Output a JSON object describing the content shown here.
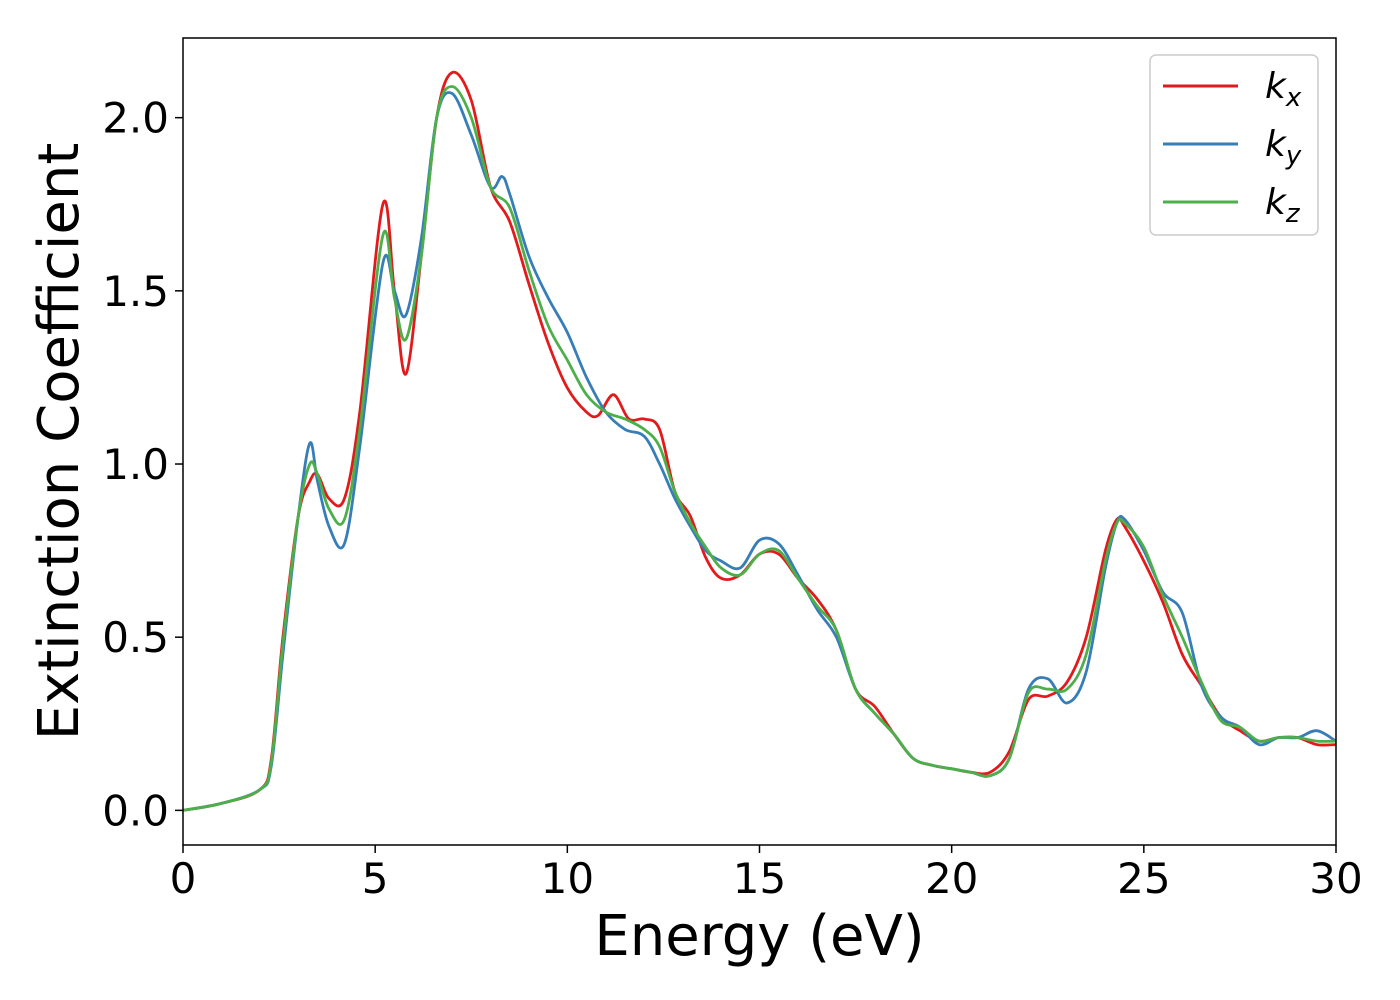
{
  "chart_data": {
    "type": "line",
    "xlabel": "Energy (eV)",
    "ylabel": "Extinction Coefficient",
    "xlim": [
      0,
      30
    ],
    "ylim": [
      -0.1,
      2.23
    ],
    "xticks": [
      0,
      5,
      10,
      15,
      20,
      25,
      30
    ],
    "xtick_labels": [
      "0",
      "5",
      "10",
      "15",
      "20",
      "25",
      "30"
    ],
    "yticks": [
      0.0,
      0.5,
      1.0,
      1.5,
      2.0
    ],
    "ytick_labels": [
      "0.0",
      "0.5",
      "1.0",
      "1.5",
      "2.0"
    ],
    "grid": false,
    "legend_position": "top-right",
    "series": [
      {
        "name": "k",
        "subscript": "x",
        "color": "#e31a1c",
        "x": [
          0,
          1,
          2,
          2.3,
          2.6,
          3,
          3.3,
          3.5,
          3.8,
          4.2,
          4.6,
          5.2,
          5.5,
          5.8,
          6.2,
          6.6,
          7.0,
          7.5,
          8.0,
          8.5,
          9.0,
          9.5,
          10.0,
          10.5,
          10.8,
          11.2,
          11.6,
          12.0,
          12.4,
          12.8,
          13.2,
          13.6,
          14.0,
          14.5,
          15.0,
          15.5,
          16.0,
          16.5,
          17.0,
          17.5,
          18.0,
          18.5,
          19.0,
          19.5,
          20.0,
          20.5,
          21.0,
          21.5,
          22.0,
          22.5,
          23.0,
          23.5,
          24.0,
          24.3,
          24.5,
          25.0,
          25.5,
          26.0,
          26.5,
          27.0,
          27.5,
          28.0,
          28.5,
          29.0,
          29.5,
          30.0
        ],
        "y": [
          0,
          0.02,
          0.06,
          0.15,
          0.5,
          0.85,
          0.95,
          0.97,
          0.9,
          0.9,
          1.15,
          1.75,
          1.5,
          1.26,
          1.6,
          2.0,
          2.13,
          2.05,
          1.8,
          1.7,
          1.52,
          1.35,
          1.22,
          1.15,
          1.14,
          1.2,
          1.13,
          1.13,
          1.1,
          0.92,
          0.85,
          0.73,
          0.67,
          0.68,
          0.74,
          0.74,
          0.67,
          0.61,
          0.52,
          0.35,
          0.3,
          0.22,
          0.15,
          0.13,
          0.12,
          0.11,
          0.11,
          0.17,
          0.32,
          0.33,
          0.37,
          0.5,
          0.75,
          0.84,
          0.82,
          0.72,
          0.6,
          0.45,
          0.36,
          0.27,
          0.23,
          0.2,
          0.21,
          0.21,
          0.19,
          0.19
        ]
      },
      {
        "name": "k",
        "subscript": "y",
        "color": "#377eb8",
        "x": [
          0,
          1,
          2,
          2.3,
          2.6,
          3,
          3.3,
          3.5,
          3.8,
          4.2,
          4.6,
          5.2,
          5.5,
          5.8,
          6.2,
          6.6,
          7.0,
          7.5,
          8.0,
          8.3,
          8.5,
          9.0,
          9.5,
          10.0,
          10.5,
          11.0,
          11.5,
          12.0,
          12.4,
          12.8,
          13.2,
          13.6,
          14.0,
          14.5,
          15.0,
          15.5,
          16.0,
          16.5,
          17.0,
          17.5,
          18.0,
          18.5,
          19.0,
          19.5,
          20.0,
          20.5,
          21.0,
          21.5,
          22.0,
          22.5,
          23.0,
          23.5,
          24.0,
          24.3,
          24.5,
          25.0,
          25.5,
          26.0,
          26.5,
          27.0,
          27.5,
          28.0,
          28.5,
          29.0,
          29.5,
          30.0
        ],
        "y": [
          0,
          0.02,
          0.06,
          0.13,
          0.45,
          0.85,
          1.06,
          0.95,
          0.82,
          0.77,
          1.05,
          1.58,
          1.5,
          1.43,
          1.65,
          2.0,
          2.07,
          1.95,
          1.8,
          1.83,
          1.78,
          1.6,
          1.48,
          1.38,
          1.25,
          1.15,
          1.1,
          1.08,
          1.0,
          0.9,
          0.82,
          0.75,
          0.72,
          0.7,
          0.78,
          0.77,
          0.68,
          0.58,
          0.5,
          0.35,
          0.28,
          0.22,
          0.15,
          0.13,
          0.12,
          0.11,
          0.1,
          0.15,
          0.35,
          0.38,
          0.31,
          0.4,
          0.7,
          0.83,
          0.84,
          0.75,
          0.63,
          0.57,
          0.36,
          0.27,
          0.24,
          0.19,
          0.21,
          0.21,
          0.23,
          0.2
        ]
      },
      {
        "name": "k",
        "subscript": "z",
        "color": "#4daf4a",
        "x": [
          0,
          1,
          2,
          2.3,
          2.6,
          3,
          3.3,
          3.5,
          3.8,
          4.2,
          4.6,
          5.2,
          5.5,
          5.8,
          6.2,
          6.6,
          7.0,
          7.5,
          8.0,
          8.5,
          9.0,
          9.5,
          10.0,
          10.5,
          11.0,
          11.5,
          12.0,
          12.4,
          12.8,
          13.2,
          13.6,
          14.0,
          14.5,
          15.0,
          15.5,
          16.0,
          16.5,
          17.0,
          17.5,
          18.0,
          18.5,
          19.0,
          19.5,
          20.0,
          20.5,
          21.0,
          21.5,
          22.0,
          22.5,
          23.0,
          23.5,
          24.0,
          24.3,
          24.5,
          25.0,
          25.5,
          26.0,
          26.5,
          27.0,
          27.5,
          28.0,
          28.5,
          29.0,
          29.5,
          30.0
        ],
        "y": [
          0,
          0.02,
          0.06,
          0.14,
          0.48,
          0.85,
          1.0,
          0.97,
          0.87,
          0.84,
          1.1,
          1.66,
          1.48,
          1.36,
          1.6,
          2.0,
          2.09,
          2.0,
          1.8,
          1.74,
          1.56,
          1.4,
          1.3,
          1.2,
          1.15,
          1.13,
          1.1,
          1.05,
          0.92,
          0.83,
          0.76,
          0.7,
          0.68,
          0.74,
          0.75,
          0.67,
          0.59,
          0.52,
          0.35,
          0.28,
          0.22,
          0.15,
          0.13,
          0.12,
          0.11,
          0.1,
          0.15,
          0.34,
          0.35,
          0.35,
          0.45,
          0.72,
          0.83,
          0.83,
          0.76,
          0.62,
          0.5,
          0.37,
          0.26,
          0.24,
          0.2,
          0.21,
          0.21,
          0.2,
          0.2
        ]
      }
    ]
  }
}
